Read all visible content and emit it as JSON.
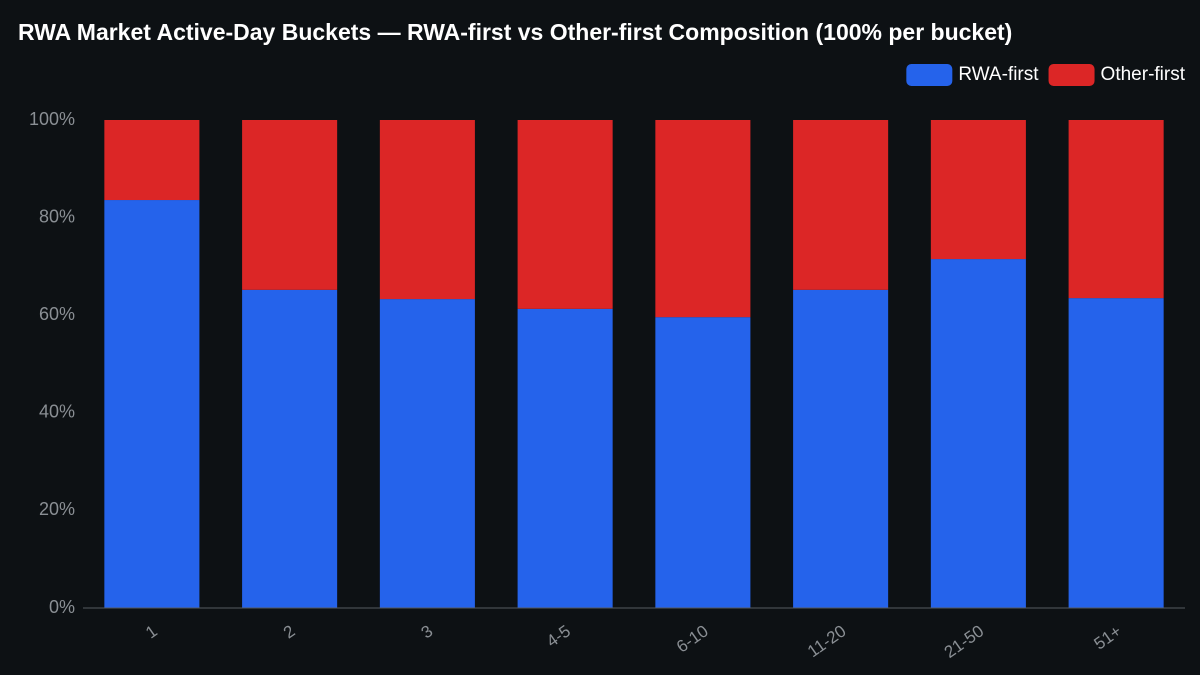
{
  "chart_data": {
    "type": "stacked_bar",
    "title": "RWA Market Active-Day Buckets — RWA-first vs Other-first Composition (100% per bucket)",
    "categories": [
      "1",
      "2",
      "3",
      "4-5",
      "6-10",
      "11-20",
      "21-50",
      "51+"
    ],
    "series": [
      {
        "name": "RWA-first",
        "color": "#2563eb",
        "values": [
          83.6,
          65.2,
          63.3,
          61.3,
          59.6,
          65.2,
          71.5,
          63.5
        ]
      },
      {
        "name": "Other-first",
        "color": "#dc2626",
        "values": [
          16.4,
          34.8,
          36.7,
          38.7,
          40.4,
          34.8,
          28.5,
          36.5
        ]
      }
    ],
    "ylim": [
      0,
      100
    ],
    "yticks": [
      {
        "value": 0,
        "label": "0%"
      },
      {
        "value": 20,
        "label": "20%"
      },
      {
        "value": 40,
        "label": "40%"
      },
      {
        "value": 60,
        "label": "60%"
      },
      {
        "value": 80,
        "label": "80%"
      },
      {
        "value": 100,
        "label": "100%"
      }
    ],
    "legend": "top-right"
  }
}
